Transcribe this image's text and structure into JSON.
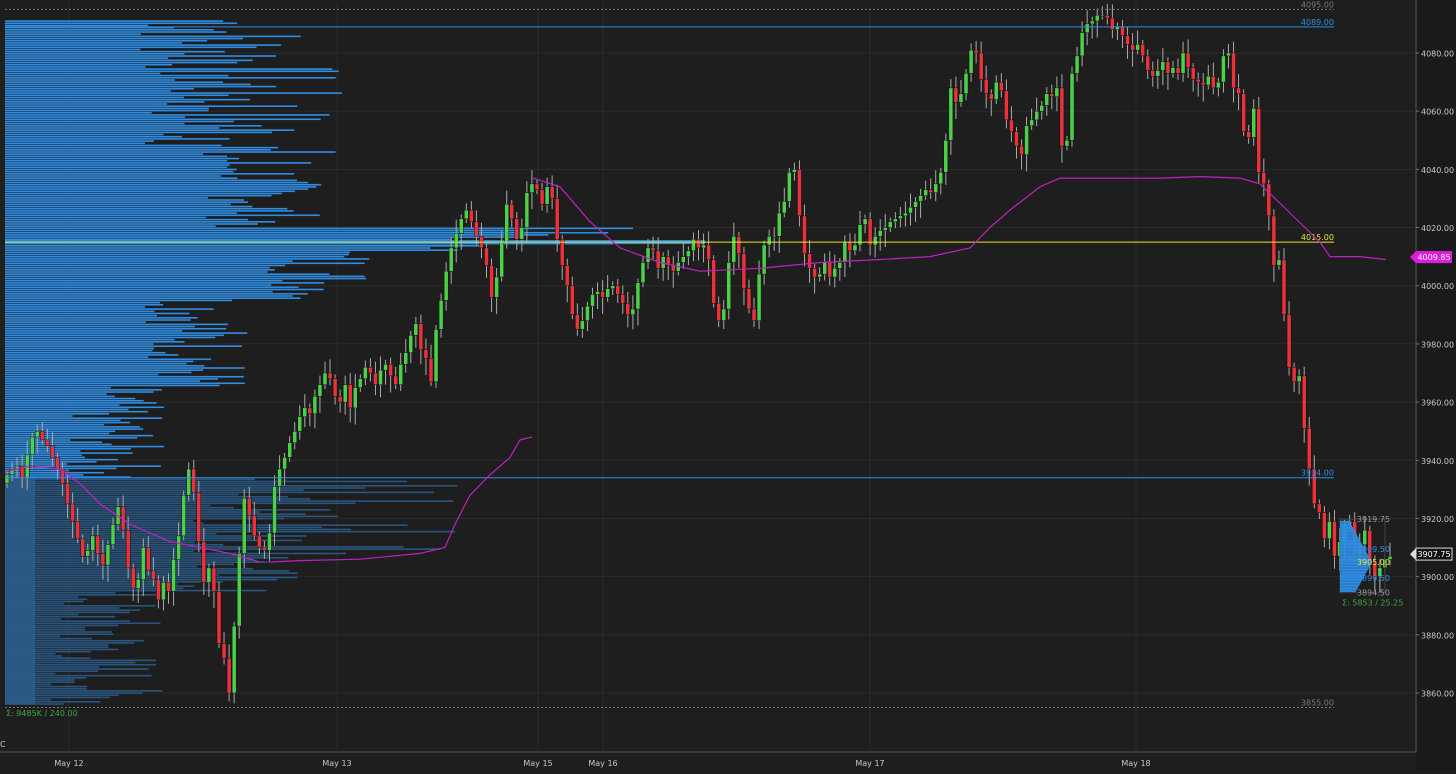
{
  "chart_data": {
    "type": "candlestick",
    "y_axis": {
      "min": 3850,
      "max": 4097,
      "ticks": [
        4080,
        4060,
        4040,
        4020,
        4000,
        3980,
        3960,
        3940,
        3920,
        3900,
        3880,
        3860
      ],
      "labels": [
        "4080.00",
        "4060.00",
        "4040.00",
        "4020.00",
        "4000.00",
        "3980.00",
        "3960.00",
        "3940.00",
        "3920.00",
        "3900.00",
        "3880.00",
        "3860.00"
      ]
    },
    "x_axis": {
      "labels": [
        "May 12",
        "May 13",
        "May 15",
        "May 16",
        "May 17",
        "May 18"
      ]
    },
    "series": {
      "closes": [
        3935,
        3937,
        3938,
        3934,
        3942,
        3948,
        3950,
        3947,
        3945,
        3941,
        3937,
        3932,
        3925,
        3919,
        3913,
        3907,
        3909,
        3914,
        3908,
        3904,
        3911,
        3918,
        3924,
        3916,
        3903,
        3896,
        3899,
        3910,
        3902,
        3899,
        3892,
        3898,
        3895,
        3906,
        3914,
        3928,
        3937,
        3929,
        3912,
        3898,
        3903,
        3895,
        3877,
        3872,
        3860,
        3883,
        3908,
        3927,
        3921,
        3914,
        3910,
        3909,
        3915,
        3931,
        3937,
        3941,
        3946,
        3950,
        3955,
        3958,
        3956,
        3962,
        3966,
        3970,
        3968,
        3962,
        3960,
        3966,
        3958,
        3965,
        3968,
        3972,
        3970,
        3966,
        3971,
        3973,
        3969,
        3966,
        3973,
        3977,
        3983,
        3987,
        3978,
        3975,
        3967,
        3985,
        3995,
        4005,
        4013,
        4018,
        4023,
        4026,
        4022,
        4017,
        4013,
        4007,
        3996,
        4003,
        4015,
        4028,
        4023,
        4016,
        4020,
        4032,
        4035,
        4033,
        4028,
        4034,
        4030,
        4016,
        4007,
        4000,
        3990,
        3985,
        3988,
        3993,
        3997,
        3998,
        3996,
        3999,
        4000,
        3997,
        3994,
        3990,
        3992,
        4001,
        4008,
        4013,
        4012,
        4006,
        4010,
        4007,
        4005,
        4008,
        4010,
        4012,
        4016,
        4013,
        4014,
        4009,
        3994,
        3988,
        3992,
        4008,
        4017,
        4011,
        3999,
        3992,
        3988,
        4004,
        4014,
        4017,
        4017,
        4025,
        4029,
        4039,
        4040,
        4024,
        4011,
        4006,
        4003,
        4004,
        4008,
        4003,
        4006,
        4008,
        4015,
        4012,
        4014,
        4021,
        4023,
        4014,
        4017,
        4019,
        4020,
        4022,
        4023,
        4024,
        4025,
        4027,
        4029,
        4031,
        4033,
        4032,
        4035,
        4039,
        4050,
        4068,
        4063,
        4066,
        4073,
        4081,
        4080,
        4071,
        4066,
        4064,
        4070,
        4067,
        4057,
        4053,
        4048,
        4045,
        4055,
        4057,
        4060,
        4062,
        4066,
        4065,
        4068,
        4048,
        4050,
        4073,
        4079,
        4087,
        4090,
        4091,
        4093,
        4093,
        4092,
        4088,
        4089,
        4086,
        4083,
        4081,
        4083,
        4079,
        4074,
        4072,
        4074,
        4077,
        4073,
        4075,
        4073,
        4080,
        4075,
        4071,
        4070,
        4069,
        4072,
        4068,
        4070,
        4079,
        4080,
        4068,
        4066,
        4053,
        4051,
        4061,
        4039,
        4035,
        4024,
        4007,
        4009,
        3990,
        3972,
        3967,
        3969,
        3951,
        3937,
        3925,
        3922,
        3913,
        3919,
        3907,
        3912,
        3918,
        3919,
        3908,
        3911,
        3916,
        3905,
        3900,
        3903,
        3906,
        3907
      ],
      "vwap_label": "4009.85"
    },
    "price_labels": {
      "last": "3907.75",
      "high_ref": "4095.00",
      "level_4089": "4089.00",
      "level_4015": "4015.00",
      "level_3934": "3934.00",
      "level_3919": "3919.75",
      "level_3909": "3909.50",
      "level_3905": "3905.00",
      "level_3899": "3899.50",
      "level_3894": "3894.50",
      "low_ref": "3855.00"
    },
    "profile_left_label": "Σ: 9485K / 240.00",
    "profile_right_label": "Σ: 5853 / 25.25",
    "corner_label": "C",
    "colors": {
      "bg": "#1e1e1e",
      "up": "#4cd048",
      "down": "#e8323c",
      "profile": "#2f8de4",
      "profile_dim": "#2a5a86",
      "vwap": "#c020c0",
      "poc": "#e6e632",
      "grid": "#2b2b2b",
      "axis_text": "#c8c8c8",
      "vwap_badge": "#e01be0"
    }
  }
}
